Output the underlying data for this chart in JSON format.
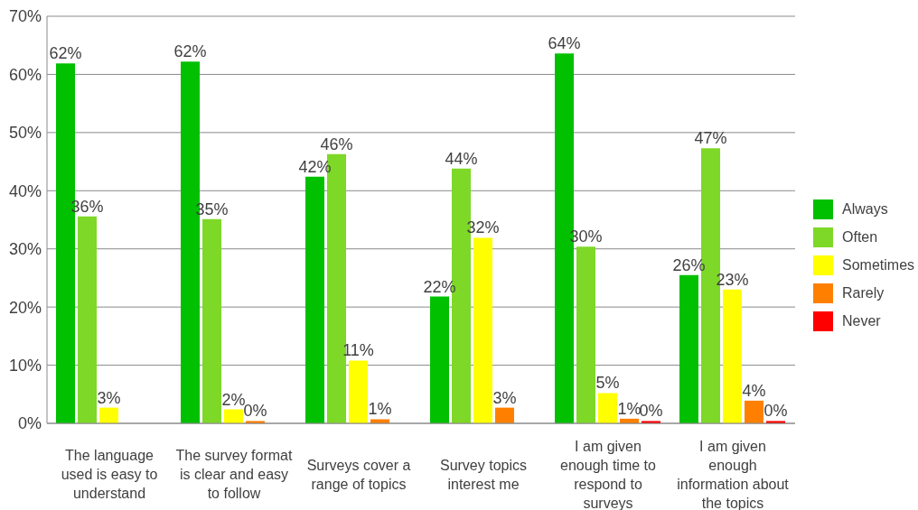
{
  "chart_data": {
    "type": "bar",
    "categories": [
      "The language used is easy to understand",
      "The survey format is clear and easy to follow",
      "Surveys cover a range of topics",
      "Survey topics interest me",
      "I am given enough time to respond to surveys",
      "I am given enough information about the topics"
    ],
    "series": [
      {
        "name": "Always",
        "color": "#00c000",
        "values": [
          61.9,
          62.2,
          42.4,
          21.8,
          63.6,
          25.5
        ],
        "value_labels": [
          "62%",
          "62%",
          "42%",
          "22%",
          "64%",
          "26%"
        ]
      },
      {
        "name": "Often",
        "color": "#7ed827",
        "values": [
          35.6,
          35.1,
          46.3,
          43.8,
          30.4,
          47.3
        ],
        "value_labels": [
          "36%",
          "35%",
          "46%",
          "44%",
          "30%",
          "47%"
        ]
      },
      {
        "name": "Sometimes",
        "color": "#ffff00",
        "values": [
          2.7,
          2.4,
          10.8,
          31.9,
          5.2,
          23.0
        ],
        "value_labels": [
          "3%",
          "2%",
          "11%",
          "32%",
          "5%",
          "23%"
        ]
      },
      {
        "name": "Rarely",
        "color": "#ff8000",
        "values": [
          null,
          0.4,
          0.7,
          2.7,
          0.8,
          3.9
        ],
        "value_labels": [
          null,
          "0%",
          "1%",
          "3%",
          "1%",
          "4%"
        ]
      },
      {
        "name": "Never",
        "color": "#ff0000",
        "values": [
          null,
          null,
          null,
          null,
          0.4,
          0.4
        ],
        "value_labels": [
          null,
          null,
          null,
          null,
          "0%",
          "0%"
        ]
      }
    ],
    "ylim": [
      0,
      70
    ],
    "yticks": [
      {
        "value": 0,
        "label": "0%"
      },
      {
        "value": 10,
        "label": "10%"
      },
      {
        "value": 20,
        "label": "20%"
      },
      {
        "value": 30,
        "label": "30%"
      },
      {
        "value": 40,
        "label": "40%"
      },
      {
        "value": 50,
        "label": "50%"
      },
      {
        "value": 60,
        "label": "60%"
      },
      {
        "value": 70,
        "label": "70%"
      }
    ],
    "grid": "y",
    "legend": "right"
  }
}
